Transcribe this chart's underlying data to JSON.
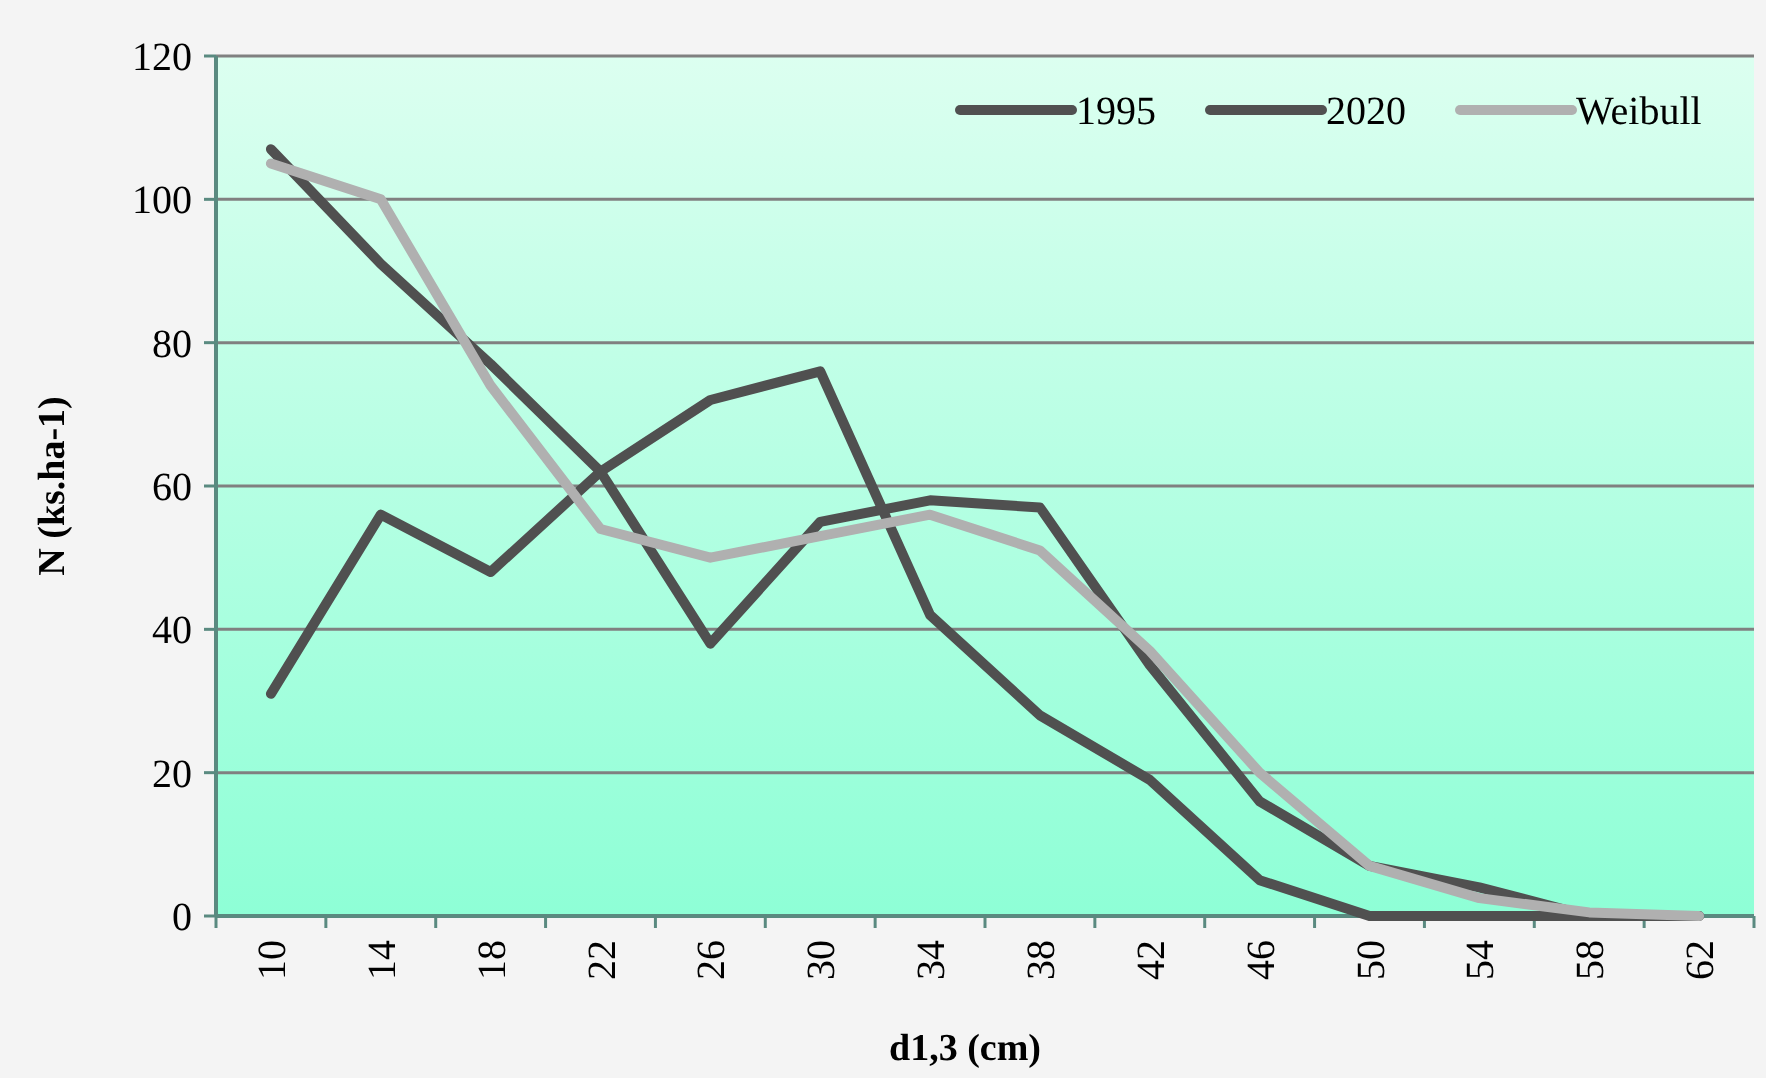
{
  "chart_data": {
    "type": "line",
    "xlabel": "d1,3 (cm)",
    "ylabel": "N (ks.ha-1)",
    "categories": [
      "10",
      "14",
      "18",
      "22",
      "26",
      "30",
      "34",
      "38",
      "42",
      "46",
      "50",
      "54",
      "58",
      "62"
    ],
    "series": [
      {
        "name": "1995",
        "color": "#505050",
        "values": [
          107,
          91,
          77,
          62,
          38,
          55,
          58,
          57,
          35,
          16,
          7,
          4,
          0,
          0
        ]
      },
      {
        "name": "2020",
        "color": "#505050",
        "values": [
          31,
          56,
          48,
          62,
          72,
          76,
          42,
          28,
          19,
          5,
          0,
          0,
          0,
          0
        ]
      },
      {
        "name": "Weibull",
        "color": "#b0b0b0",
        "values": [
          105,
          100,
          74,
          54,
          50,
          53,
          56,
          51,
          37,
          20,
          7,
          2.5,
          0.5,
          0
        ]
      }
    ],
    "ylim": [
      0,
      120
    ],
    "yticks": [
      0,
      20,
      40,
      60,
      80,
      100,
      120
    ],
    "grid": "y",
    "legend": "top right",
    "marker": "none",
    "line_style": "solid"
  }
}
